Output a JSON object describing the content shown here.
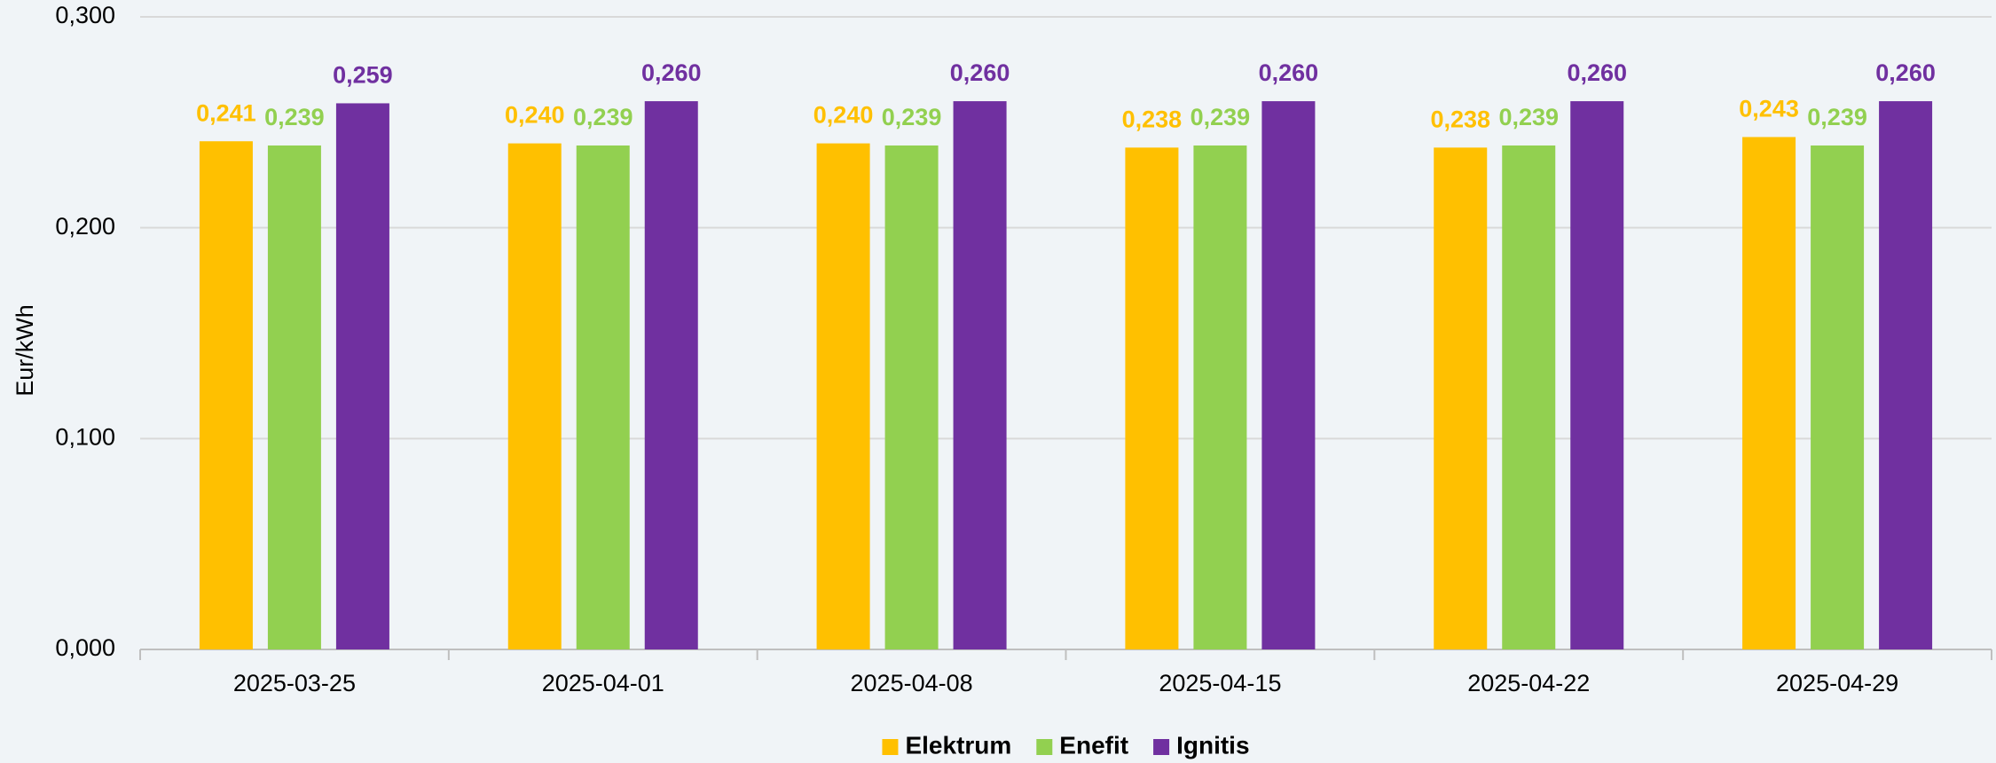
{
  "chart_data": {
    "type": "bar",
    "y_label": "Eur/kWh",
    "categories": [
      "2025-03-25",
      "2025-04-01",
      "2025-04-08",
      "2025-04-15",
      "2025-04-22",
      "2025-04-29"
    ],
    "series": [
      {
        "name": "Elektrum",
        "color": "#ffc000",
        "values": [
          0.241,
          0.24,
          0.24,
          0.238,
          0.238,
          0.243
        ],
        "value_labels": [
          "0,241",
          "0,240",
          "0,240",
          "0,238",
          "0,238",
          "0,243"
        ]
      },
      {
        "name": "Enefit",
        "color": "#92d050",
        "values": [
          0.239,
          0.239,
          0.239,
          0.239,
          0.239,
          0.239
        ],
        "value_labels": [
          "0,239",
          "0,239",
          "0,239",
          "0,239",
          "0,239",
          "0,239"
        ]
      },
      {
        "name": "Ignitis",
        "color": "#7030a0",
        "values": [
          0.259,
          0.26,
          0.26,
          0.26,
          0.26,
          0.26
        ],
        "value_labels": [
          "0,259",
          "0,260",
          "0,260",
          "0,260",
          "0,260",
          "0,260"
        ]
      }
    ],
    "ylim": [
      0,
      0.3
    ],
    "yticks": [
      {
        "value": 0,
        "label": "0,000"
      },
      {
        "value": 0.1,
        "label": "0,100"
      },
      {
        "value": 0.2,
        "label": "0,200"
      },
      {
        "value": 0.3,
        "label": "0,300"
      }
    ],
    "grid": true,
    "legend": "bottom"
  }
}
